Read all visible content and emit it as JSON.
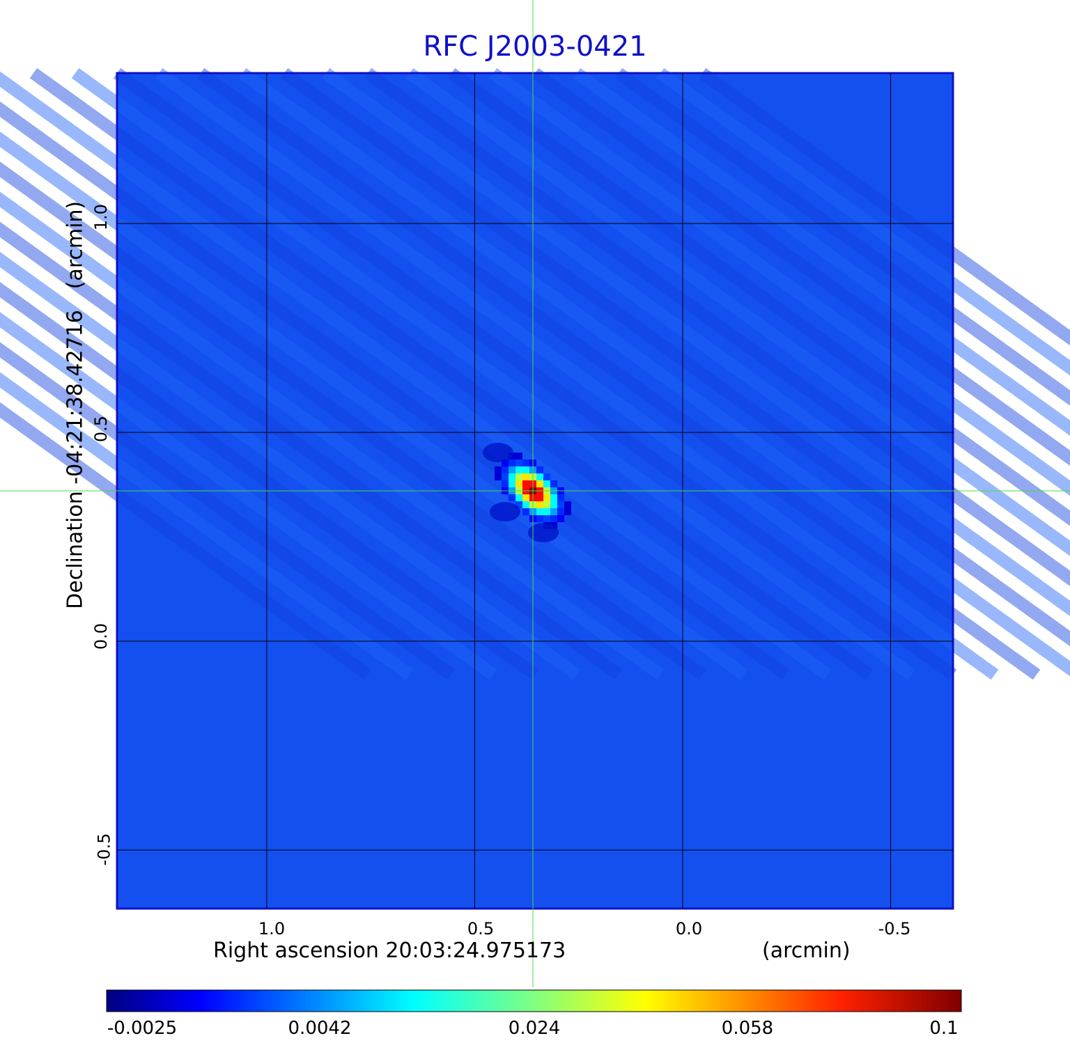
{
  "chart_data": {
    "type": "heatmap",
    "title": "RFC J2003-0421",
    "xlabel": "Right ascension  20:03:24.975173",
    "xunit": "(arcmin)",
    "ylabel": "Declination  -04:21:38.42716",
    "yunit": "(arcmin)",
    "x_ticks": [
      "1.0",
      "0.5",
      "0.0",
      "-0.5"
    ],
    "y_ticks": [
      "1.0",
      "0.5",
      "0.0",
      "-0.5"
    ],
    "xlim": [
      1.36,
      -0.65
    ],
    "ylim": [
      -0.64,
      1.36
    ],
    "grid": true,
    "source": {
      "x": 0.36,
      "y": 0.36,
      "peak": 0.1
    },
    "crosshair": {
      "x": 0.36,
      "y": 0.36
    },
    "colormap": "jet",
    "colorbar_ticks": [
      "-0.0025",
      "0.0042",
      "0.024",
      "0.058",
      "0.1"
    ],
    "value_range": [
      -0.0025,
      0.1
    ]
  },
  "colors": {
    "title": "#1010c8",
    "background_field": "#1450f0",
    "grid": "#000000",
    "crosshair": "#44dd44",
    "frame": "#1010c8"
  }
}
